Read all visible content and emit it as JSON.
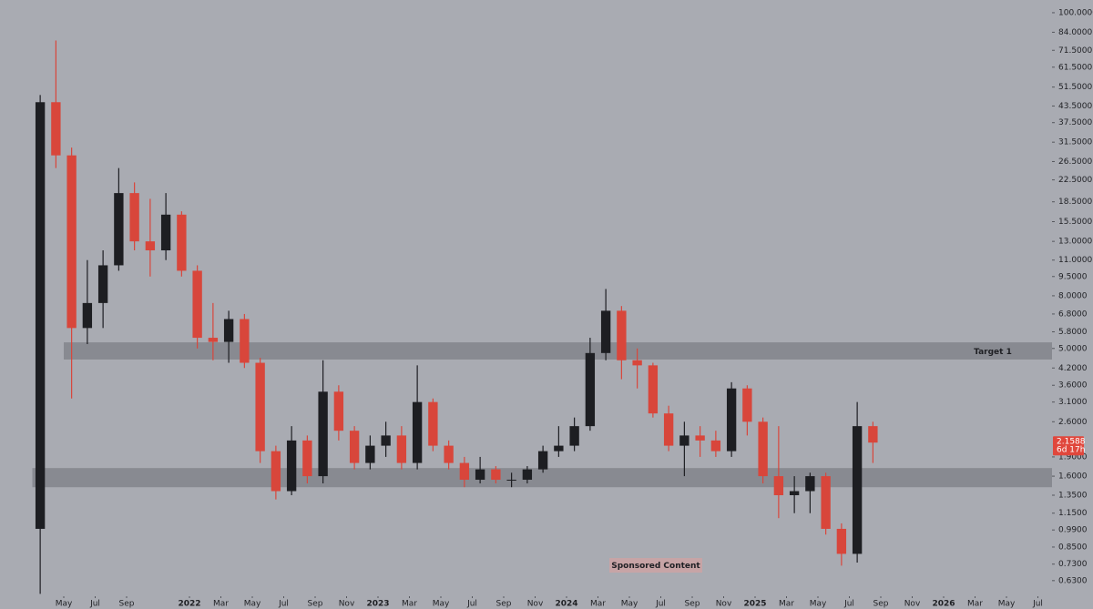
{
  "chart_data": {
    "type": "candlestick",
    "x": [
      "2021-03",
      "2021-04",
      "2021-05",
      "2021-06",
      "2021-07",
      "2021-08",
      "2021-09",
      "2021-10",
      "2021-11",
      "2021-12",
      "2022-01",
      "2022-02",
      "2022-03",
      "2022-04",
      "2022-05",
      "2022-06",
      "2022-07",
      "2022-08",
      "2022-09",
      "2022-10",
      "2022-11",
      "2022-12",
      "2023-01",
      "2023-02",
      "2023-03",
      "2023-04",
      "2023-05",
      "2023-06",
      "2023-07",
      "2023-08",
      "2023-09",
      "2023-10",
      "2023-11",
      "2023-12",
      "2024-01",
      "2024-02",
      "2024-03",
      "2024-04",
      "2024-05",
      "2024-06",
      "2024-07",
      "2024-08",
      "2024-09",
      "2024-10",
      "2024-11",
      "2024-12",
      "2025-01",
      "2025-02",
      "2025-03",
      "2025-04",
      "2025-05",
      "2025-06",
      "2025-07",
      "2025-08"
    ],
    "open": [
      1.0,
      45,
      28,
      6.0,
      7.5,
      10.5,
      20,
      13,
      12,
      16.5,
      10,
      5.5,
      5.3,
      6.5,
      4.4,
      2.0,
      1.4,
      2.2,
      1.6,
      3.4,
      2.4,
      1.8,
      2.1,
      2.3,
      1.8,
      3.1,
      2.1,
      1.8,
      1.55,
      1.7,
      1.55,
      1.55,
      1.7,
      2.0,
      2.1,
      2.5,
      4.8,
      7.0,
      4.5,
      4.3,
      2.8,
      2.1,
      2.3,
      2.2,
      2.0,
      3.5,
      2.6,
      1.6,
      1.35,
      1.4,
      1.6,
      1.0,
      0.8,
      2.5
    ],
    "high": [
      48,
      78,
      30,
      11,
      12,
      25,
      22,
      19,
      20,
      17,
      10.5,
      7.5,
      7,
      6.8,
      4.6,
      2.1,
      2.5,
      2.3,
      4.5,
      3.6,
      2.5,
      2.3,
      2.6,
      2.5,
      4.3,
      3.2,
      2.2,
      1.9,
      1.9,
      1.75,
      1.65,
      1.75,
      2.1,
      2.5,
      2.7,
      5.5,
      8.5,
      7.3,
      5.0,
      4.4,
      3.0,
      2.6,
      2.5,
      2.4,
      3.7,
      3.6,
      2.7,
      2.5,
      1.6,
      1.65,
      1.65,
      1.05,
      3.1,
      2.6
    ],
    "low": [
      0.56,
      25,
      3.2,
      5.2,
      6,
      10,
      12,
      9.5,
      11,
      9.5,
      5,
      4.5,
      4.4,
      4.2,
      1.8,
      1.3,
      1.35,
      1.5,
      1.5,
      2.2,
      1.7,
      1.7,
      1.9,
      1.7,
      1.7,
      2.0,
      1.7,
      1.45,
      1.5,
      1.5,
      1.45,
      1.5,
      1.65,
      1.9,
      2.0,
      2.4,
      4.5,
      3.8,
      3.5,
      2.7,
      2.0,
      1.6,
      1.9,
      1.9,
      1.9,
      2.3,
      1.5,
      1.1,
      1.15,
      1.15,
      0.95,
      0.72,
      0.74,
      1.8
    ],
    "close": [
      45,
      28,
      6.0,
      7.5,
      10.5,
      20,
      13,
      12,
      16.5,
      10,
      5.5,
      5.3,
      6.5,
      4.4,
      2.0,
      1.4,
      2.2,
      1.6,
      3.4,
      2.4,
      1.8,
      2.1,
      2.3,
      1.8,
      3.1,
      2.1,
      1.8,
      1.55,
      1.7,
      1.55,
      1.55,
      1.7,
      2.0,
      2.1,
      2.5,
      4.8,
      7.0,
      4.5,
      4.3,
      2.8,
      2.1,
      2.3,
      2.2,
      2.0,
      3.5,
      2.6,
      1.6,
      1.35,
      1.4,
      1.6,
      1.0,
      0.8,
      2.5,
      2.1588
    ],
    "up_color": "#1d1e22",
    "down_color": "#d8463b",
    "log_scale": true,
    "ylim": [
      0.548,
      112
    ],
    "yticks": [
      {
        "value": 100,
        "label": "100.0000"
      },
      {
        "value": 84,
        "label": "84.0000"
      },
      {
        "value": 71.5,
        "label": "71.5000"
      },
      {
        "value": 61.5,
        "label": "61.5000"
      },
      {
        "value": 51.5,
        "label": "51.5000"
      },
      {
        "value": 43.5,
        "label": "43.5000"
      },
      {
        "value": 37.5,
        "label": "37.5000"
      },
      {
        "value": 31.5,
        "label": "31.5000"
      },
      {
        "value": 26.5,
        "label": "26.5000"
      },
      {
        "value": 22.5,
        "label": "22.5000"
      },
      {
        "value": 18.5,
        "label": "18.5000"
      },
      {
        "value": 15.5,
        "label": "15.5000"
      },
      {
        "value": 13,
        "label": "13.0000"
      },
      {
        "value": 11,
        "label": "11.0000"
      },
      {
        "value": 9.5,
        "label": "9.5000"
      },
      {
        "value": 8,
        "label": "8.0000"
      },
      {
        "value": 6.8,
        "label": "6.8000"
      },
      {
        "value": 5.8,
        "label": "5.8000"
      },
      {
        "value": 5,
        "label": "5.0000"
      },
      {
        "value": 4.2,
        "label": "4.2000"
      },
      {
        "value": 3.6,
        "label": "3.6000"
      },
      {
        "value": 3.1,
        "label": "3.1000"
      },
      {
        "value": 2.6,
        "label": "2.6000"
      },
      {
        "value": 1.9,
        "label": "1.9000"
      },
      {
        "value": 1.6,
        "label": "1.6000"
      },
      {
        "value": 1.35,
        "label": "1.3500"
      },
      {
        "value": 1.15,
        "label": "1.1500"
      },
      {
        "value": 0.99,
        "label": "0.9900"
      },
      {
        "value": 0.85,
        "label": "0.8500"
      },
      {
        "value": 0.73,
        "label": "0.7300"
      },
      {
        "value": 0.63,
        "label": "0.6300"
      }
    ],
    "xlim": [
      "2021-01",
      "2026-08"
    ],
    "xticks": [
      {
        "value": "2021-05",
        "label": "May"
      },
      {
        "value": "2021-07",
        "label": "Jul"
      },
      {
        "value": "2021-09",
        "label": "Sep"
      },
      {
        "value": "2022-01",
        "label": "2022"
      },
      {
        "value": "2022-03",
        "label": "Mar"
      },
      {
        "value": "2022-05",
        "label": "May"
      },
      {
        "value": "2022-07",
        "label": "Jul"
      },
      {
        "value": "2022-09",
        "label": "Sep"
      },
      {
        "value": "2022-11",
        "label": "Nov"
      },
      {
        "value": "2023-01",
        "label": "2023"
      },
      {
        "value": "2023-03",
        "label": "Mar"
      },
      {
        "value": "2023-05",
        "label": "May"
      },
      {
        "value": "2023-07",
        "label": "Jul"
      },
      {
        "value": "2023-09",
        "label": "Sep"
      },
      {
        "value": "2023-11",
        "label": "Nov"
      },
      {
        "value": "2024-01",
        "label": "2024"
      },
      {
        "value": "2024-03",
        "label": "Mar"
      },
      {
        "value": "2024-05",
        "label": "May"
      },
      {
        "value": "2024-07",
        "label": "Jul"
      },
      {
        "value": "2024-09",
        "label": "Sep"
      },
      {
        "value": "2024-11",
        "label": "Nov"
      },
      {
        "value": "2025-01",
        "label": "2025"
      },
      {
        "value": "2025-03",
        "label": "Mar"
      },
      {
        "value": "2025-05",
        "label": "May"
      },
      {
        "value": "2025-07",
        "label": "Jul"
      },
      {
        "value": "2025-09",
        "label": "Sep"
      },
      {
        "value": "2025-11",
        "label": "Nov"
      },
      {
        "value": "2026-01",
        "label": "2026"
      },
      {
        "value": "2026-03",
        "label": "Mar"
      },
      {
        "value": "2026-05",
        "label": "May"
      },
      {
        "value": "2026-07",
        "label": "Jul"
      }
    ],
    "zones": [
      {
        "from": "2021-05",
        "low": 4.53,
        "high": 5.28,
        "label": "Target 1"
      },
      {
        "from": "2021-03",
        "low": 1.45,
        "high": 1.72
      }
    ],
    "last_price": {
      "value": 2.1588,
      "countdown": "6d 17h"
    },
    "sponsor_note": "Sponsored Content"
  }
}
